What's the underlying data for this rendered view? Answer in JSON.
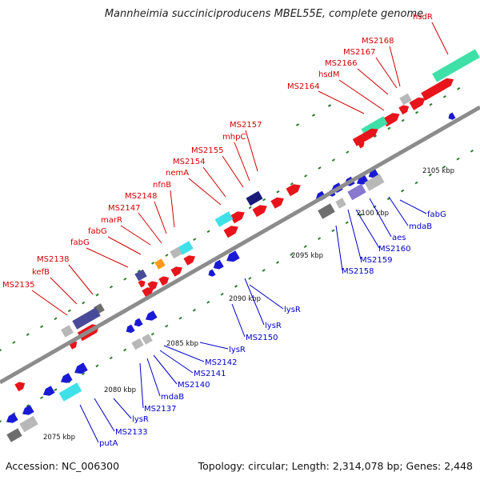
{
  "title": "Mannheimia succiniciproducens MBEL55E, complete genome",
  "footer": {
    "accession": "Accession: NC_006300",
    "summary": "Topology: circular; Length: 2,314,078 bp; Genes: 2,448"
  },
  "colors": {
    "forward_label": "#d00000",
    "reverse_label": "#0000c8",
    "red": "#e8141b",
    "blue": "#1a1ad6",
    "navy": "#1a1a78",
    "slate": "#4a4a9a",
    "lavender": "#8878d0",
    "cyan": "#40e0e8",
    "mint": "#3fe0a8",
    "orange": "#ff9a1a",
    "gray": "#b8b8b8",
    "darkgray": "#6e6e6e",
    "tick": "#2e7d2e",
    "axis": "#8c8c8c"
  },
  "scale_labels": [
    "2075 kbp",
    "2080 kbp",
    "2085 kbp",
    "2090 kbp",
    "2095 kbp",
    "2100 kbp",
    "2105 kbp"
  ],
  "labels_forward": [
    "hsdR",
    "MS2168",
    "MS2167",
    "MS2166",
    "hsdM",
    "MS2164",
    "MS2157",
    "mhpC",
    "MS2155",
    "MS2154",
    "nemA",
    "nfnB",
    "MS2148",
    "MS2147",
    "marR",
    "fabG",
    "fabG",
    "MS2138",
    "kefB",
    "MS2135"
  ],
  "labels_reverse": [
    "fabG",
    "mdaB",
    "aes",
    "MS2160",
    "MS2159",
    "MS2158",
    "lysR",
    "lysR",
    "MS2150",
    "lysR",
    "MS2142",
    "MS2141",
    "MS2140",
    "mdaB",
    "MS2137",
    "lysR",
    "MS2133",
    "putA"
  ]
}
